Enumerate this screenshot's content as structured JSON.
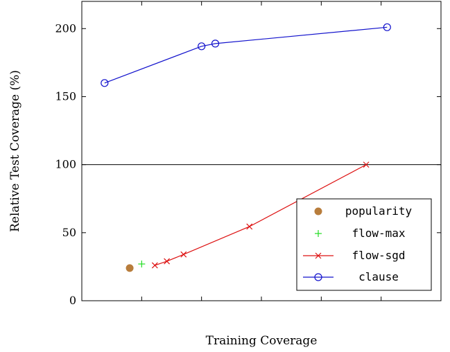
{
  "chart_data": {
    "type": "scatter",
    "title": "",
    "xlabel": "Training Coverage",
    "ylabel": "Relative Test Coverage (%)",
    "xlim": [
      0,
      6
    ],
    "ylim": [
      0,
      220
    ],
    "yticks": [
      "0",
      "50",
      "100",
      "150",
      "200"
    ],
    "xticks": [
      "",
      "",
      "",
      "",
      ""
    ],
    "grid": false,
    "reference_line_y": 100,
    "legend_position": "bottom-right",
    "series": [
      {
        "name": "popularity",
        "marker": "filled-circle",
        "color": "#b87d3c",
        "line": false,
        "points": [
          {
            "x": 0.8,
            "y": 24
          }
        ]
      },
      {
        "name": "flow-max",
        "marker": "plus",
        "color": "#22dd22",
        "line": false,
        "points": [
          {
            "x": 1.0,
            "y": 27
          }
        ]
      },
      {
        "name": "flow-sgd",
        "marker": "cross",
        "color": "#dd1111",
        "line": true,
        "points": [
          {
            "x": 1.22,
            "y": 26
          },
          {
            "x": 1.42,
            "y": 29
          },
          {
            "x": 1.7,
            "y": 34
          },
          {
            "x": 2.8,
            "y": 54.5
          },
          {
            "x": 4.75,
            "y": 100
          }
        ]
      },
      {
        "name": "clause",
        "marker": "open-circle",
        "color": "#1111cc",
        "line": true,
        "points": [
          {
            "x": 0.38,
            "y": 160
          },
          {
            "x": 2.0,
            "y": 187
          },
          {
            "x": 2.23,
            "y": 189
          },
          {
            "x": 5.1,
            "y": 201
          }
        ]
      }
    ]
  }
}
